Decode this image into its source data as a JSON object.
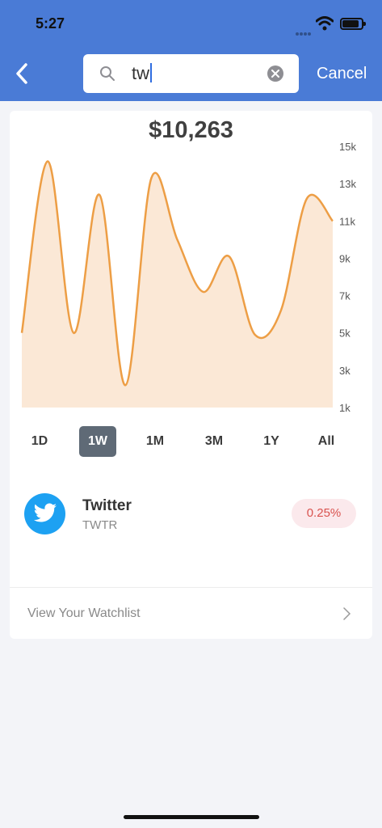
{
  "status_bar": {
    "time": "5:27"
  },
  "search": {
    "value": "tw",
    "cancel_label": "Cancel"
  },
  "portfolio": {
    "value_label": "$10,263"
  },
  "chart_data": {
    "type": "area",
    "y_tick_labels": [
      "15k",
      "13k",
      "11k",
      "9k",
      "7k",
      "5k",
      "3k",
      "1k"
    ],
    "ylim": [
      1000,
      15000
    ],
    "grid": false,
    "line_color": "#ed9e45",
    "fill_color": "#fbe8d6",
    "values": [
      5000,
      14200,
      5000,
      12400,
      2200,
      13300,
      10000,
      7200,
      9100,
      4900,
      6200,
      12200,
      11000
    ]
  },
  "ranges": [
    {
      "label": "1D",
      "active": false
    },
    {
      "label": "1W",
      "active": true
    },
    {
      "label": "1M",
      "active": false
    },
    {
      "label": "3M",
      "active": false
    },
    {
      "label": "1Y",
      "active": false
    },
    {
      "label": "All",
      "active": false
    }
  ],
  "stock": {
    "name": "Twitter",
    "symbol": "TWTR",
    "change": "0.25%",
    "icon": "twitter-bird-icon"
  },
  "watchlist": {
    "label": "View Your Watchlist"
  },
  "colors": {
    "header": "#4a7bd6",
    "active_tab": "#5f6a76",
    "negative": "#d9534f",
    "twitter": "#1da1f2"
  }
}
